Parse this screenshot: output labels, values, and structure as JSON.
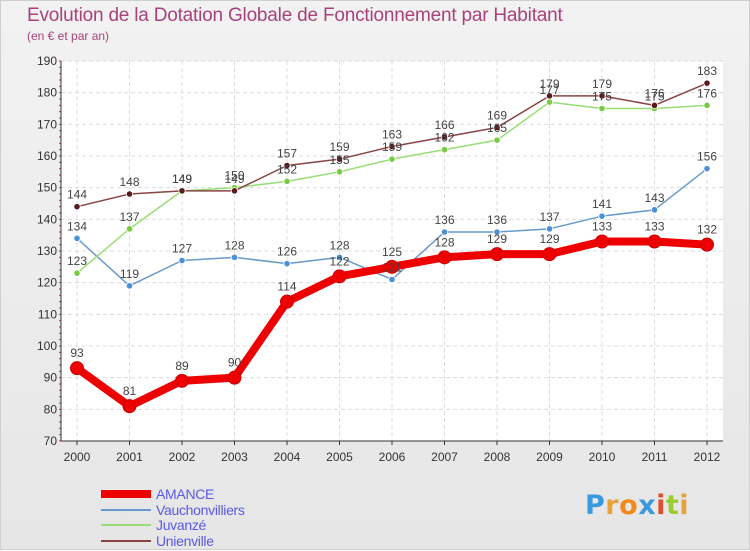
{
  "header": {
    "title": "Evolution de la Dotation Globale de Fonctionnement par Habitant",
    "subtitle": "(en € et par an)"
  },
  "logo": {
    "text": "Proxiti",
    "colors": [
      "#3a9ae0",
      "#e8a23a",
      "#f08a1a",
      "#3a9ae0",
      "#e05030",
      "#9acd32",
      "#e8a23a"
    ]
  },
  "chart_data": {
    "type": "line",
    "title": "Evolution de la Dotation Globale de Fonctionnement par Habitant",
    "subtitle": "(en € et par an)",
    "xlabel": "",
    "ylabel": "",
    "x": [
      "2000",
      "2001",
      "2002",
      "2003",
      "2004",
      "2005",
      "2006",
      "2007",
      "2008",
      "2009",
      "2010",
      "2011",
      "2012"
    ],
    "ylim": [
      70,
      190
    ],
    "yticks": [
      70,
      80,
      90,
      100,
      110,
      120,
      130,
      140,
      150,
      160,
      170,
      180,
      190
    ],
    "grid": true,
    "legend": "bottom-left",
    "series": [
      {
        "name": "AMANCE",
        "color": "#ee0000",
        "bold": true,
        "values": [
          93,
          81,
          89,
          90,
          114,
          122,
          125,
          128,
          129,
          129,
          133,
          133,
          132
        ]
      },
      {
        "name": "Vauchonvilliers",
        "color": "#6699cc",
        "marker": "#4a90d9",
        "values": [
          134,
          119,
          127,
          128,
          126,
          128,
          121,
          136,
          136,
          137,
          141,
          143,
          156
        ]
      },
      {
        "name": "Juvanzé",
        "color": "#99dd77",
        "marker": "#77cc44",
        "values": [
          123,
          137,
          149,
          150,
          152,
          155,
          159,
          162,
          165,
          177,
          175,
          175,
          176
        ]
      },
      {
        "name": "Unienville",
        "color": "#884444",
        "marker": "#5a1a1a",
        "values": [
          144,
          148,
          149,
          149,
          157,
          159,
          163,
          166,
          169,
          179,
          179,
          176,
          183
        ]
      }
    ],
    "label_series": [
      "Vauchonvilliers",
      "Juvanzé",
      "Unienville",
      "AMANCE"
    ]
  }
}
